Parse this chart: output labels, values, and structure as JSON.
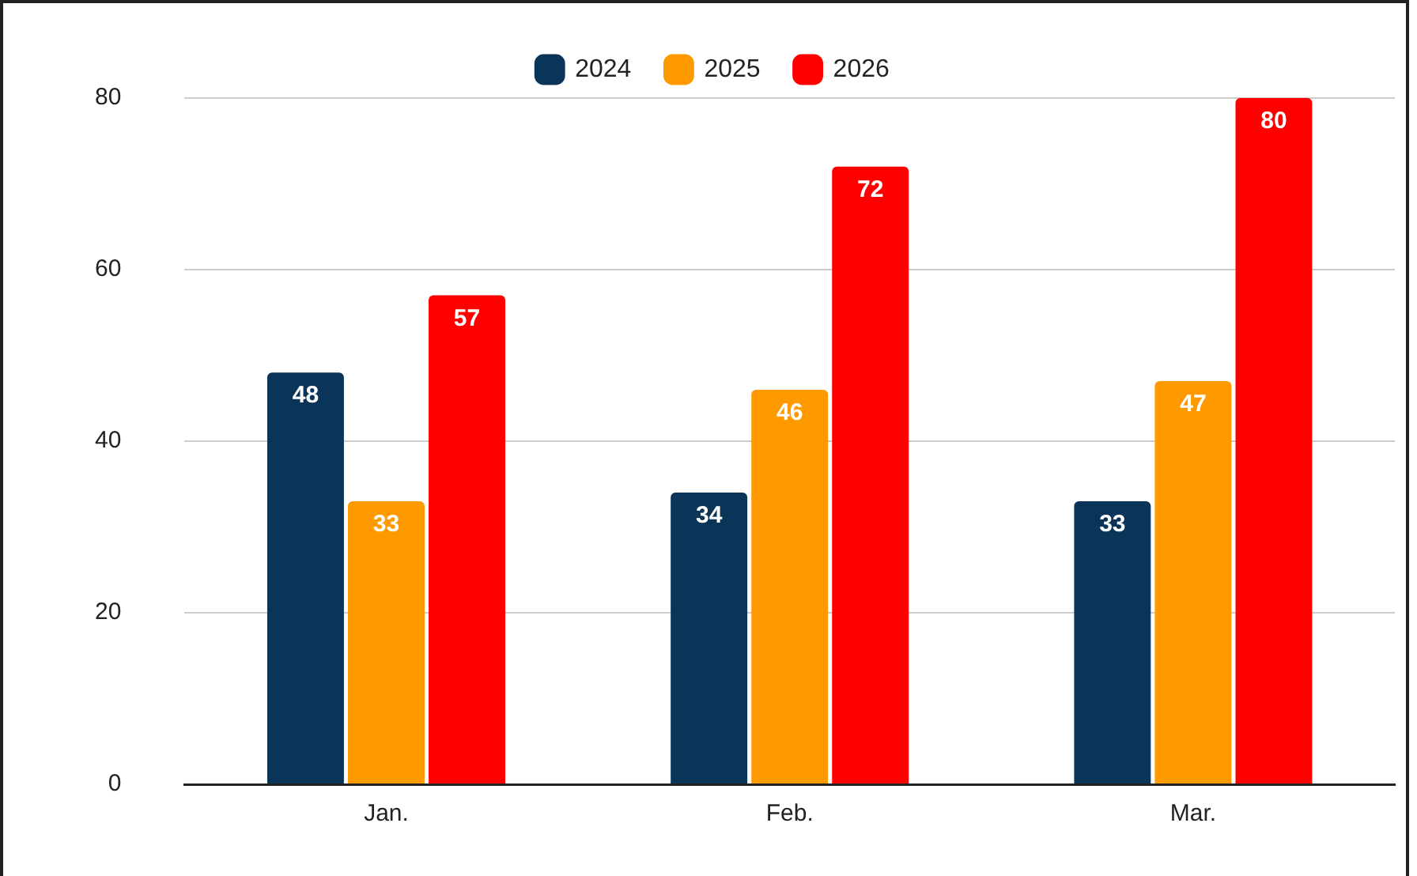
{
  "chart_data": {
    "type": "bar",
    "categories": [
      "Jan.",
      "Feb.",
      "Mar."
    ],
    "series": [
      {
        "name": "2024",
        "color": "#0b3558",
        "values": [
          48,
          34,
          33
        ]
      },
      {
        "name": "2025",
        "color": "#ff9900",
        "values": [
          33,
          46,
          47
        ]
      },
      {
        "name": "2026",
        "color": "#ff0000",
        "values": [
          57,
          72,
          80
        ]
      }
    ],
    "ylim": [
      0,
      80
    ],
    "yticks": [
      0,
      20,
      40,
      60,
      80
    ],
    "grid": "y",
    "legend": "top",
    "data_labels": true
  }
}
